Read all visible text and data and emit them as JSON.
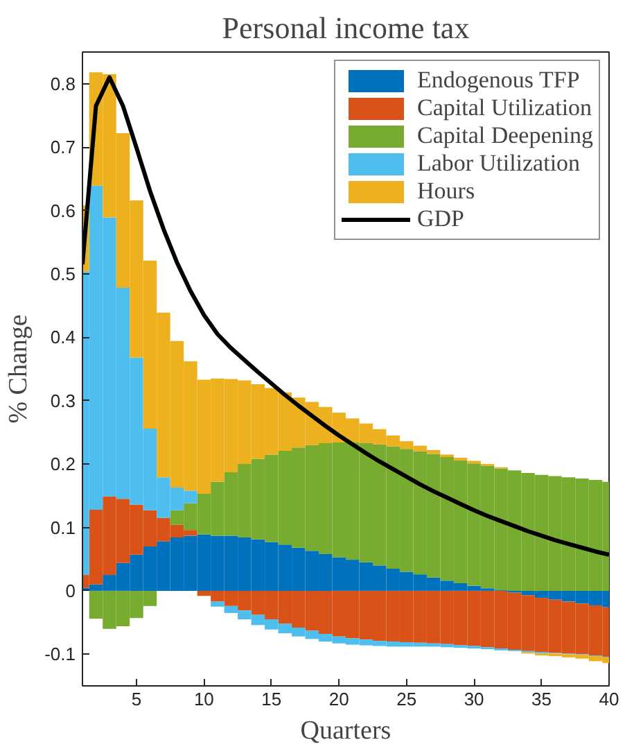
{
  "chart_data": {
    "type": "bar",
    "title": "Personal income tax",
    "xlabel": "Quarters",
    "ylabel": "% Change",
    "stacked": true,
    "x": [
      1,
      2,
      3,
      4,
      5,
      6,
      7,
      8,
      9,
      10,
      11,
      12,
      13,
      14,
      15,
      16,
      17,
      18,
      19,
      20,
      21,
      22,
      23,
      24,
      25,
      26,
      27,
      28,
      29,
      30,
      31,
      32,
      33,
      34,
      35,
      36,
      37,
      38,
      39,
      40
    ],
    "xlim": [
      1,
      40
    ],
    "xticks": [
      5,
      10,
      15,
      20,
      25,
      30,
      35,
      40
    ],
    "ylim": [
      -0.15,
      0.85
    ],
    "yticks": [
      -0.1,
      0,
      0.1,
      0.2,
      0.3,
      0.4,
      0.5,
      0.6,
      0.7,
      0.8
    ],
    "grid": false,
    "legend": "top right",
    "series": [
      {
        "name": "Endogenous TFP",
        "color": "#0072bd",
        "values": [
          0.005,
          0.01,
          0.025,
          0.044,
          0.057,
          0.07,
          0.078,
          0.084,
          0.087,
          0.089,
          0.087,
          0.087,
          0.084,
          0.081,
          0.077,
          0.073,
          0.068,
          0.063,
          0.058,
          0.053,
          0.049,
          0.045,
          0.04,
          0.035,
          0.03,
          0.026,
          0.021,
          0.016,
          0.012,
          0.008,
          0.004,
          0.001,
          -0.003,
          -0.007,
          -0.011,
          -0.014,
          -0.017,
          -0.02,
          -0.023,
          -0.026
        ]
      },
      {
        "name": "Capital Utilization",
        "color": "#d95319",
        "values": [
          0.02,
          0.118,
          0.124,
          0.101,
          0.079,
          0.057,
          0.037,
          0.02,
          0.009,
          -0.008,
          -0.017,
          -0.024,
          -0.031,
          -0.038,
          -0.045,
          -0.052,
          -0.058,
          -0.063,
          -0.068,
          -0.072,
          -0.075,
          -0.077,
          -0.079,
          -0.08,
          -0.081,
          -0.082,
          -0.083,
          -0.084,
          -0.086,
          -0.087,
          -0.089,
          -0.091,
          -0.09,
          -0.088,
          -0.086,
          -0.084,
          -0.082,
          -0.08,
          -0.079,
          -0.078
        ]
      },
      {
        "name": "Capital Deepening",
        "color": "#77ac30",
        "values": [
          0,
          -0.044,
          -0.06,
          -0.056,
          -0.043,
          -0.024,
          0,
          0.023,
          0.042,
          0.064,
          0.085,
          0.1,
          0.116,
          0.127,
          0.138,
          0.148,
          0.158,
          0.167,
          0.175,
          0.181,
          0.185,
          0.188,
          0.191,
          0.193,
          0.194,
          0.194,
          0.195,
          0.195,
          0.194,
          0.193,
          0.193,
          0.192,
          0.19,
          0.186,
          0.183,
          0.181,
          0.179,
          0.177,
          0.175,
          0.172
        ]
      },
      {
        "name": "Labor Utilization",
        "color": "#4dbeee",
        "values": [
          0.479,
          0.511,
          0.44,
          0.333,
          0.232,
          0.129,
          0.064,
          0.036,
          0.02,
          0,
          -0.008,
          -0.011,
          -0.014,
          -0.016,
          -0.016,
          -0.015,
          -0.014,
          -0.013,
          -0.012,
          -0.011,
          -0.01,
          -0.009,
          -0.008,
          -0.008,
          -0.007,
          -0.006,
          -0.005,
          -0.005,
          -0.004,
          -0.004,
          -0.003,
          -0.003,
          -0.002,
          -0.002,
          -0.002,
          -0.001,
          -0.001,
          -0.001,
          -0.001,
          -0.001
        ]
      },
      {
        "name": "Hours",
        "color": "#edb120",
        "values": [
          0.104,
          0.179,
          0.226,
          0.244,
          0.248,
          0.265,
          0.26,
          0.231,
          0.204,
          0.18,
          0.163,
          0.147,
          0.132,
          0.118,
          0.105,
          0.092,
          0.079,
          0.068,
          0.057,
          0.047,
          0.038,
          0.031,
          0.024,
          0.017,
          0.012,
          0.009,
          0.006,
          0.004,
          0.004,
          0.004,
          0.003,
          0.002,
          0,
          -0.002,
          -0.003,
          -0.004,
          -0.005,
          -0.006,
          -0.008,
          -0.009
        ]
      },
      {
        "name": "GDP",
        "type": "line",
        "color": "#000000",
        "values": [
          0.515,
          0.765,
          0.81,
          0.765,
          0.699,
          0.631,
          0.571,
          0.518,
          0.473,
          0.435,
          0.405,
          0.383,
          0.364,
          0.345,
          0.327,
          0.309,
          0.292,
          0.276,
          0.26,
          0.245,
          0.231,
          0.217,
          0.204,
          0.192,
          0.18,
          0.168,
          0.157,
          0.147,
          0.137,
          0.127,
          0.118,
          0.11,
          0.102,
          0.094,
          0.087,
          0.08,
          0.074,
          0.068,
          0.062,
          0.057
        ]
      }
    ]
  }
}
